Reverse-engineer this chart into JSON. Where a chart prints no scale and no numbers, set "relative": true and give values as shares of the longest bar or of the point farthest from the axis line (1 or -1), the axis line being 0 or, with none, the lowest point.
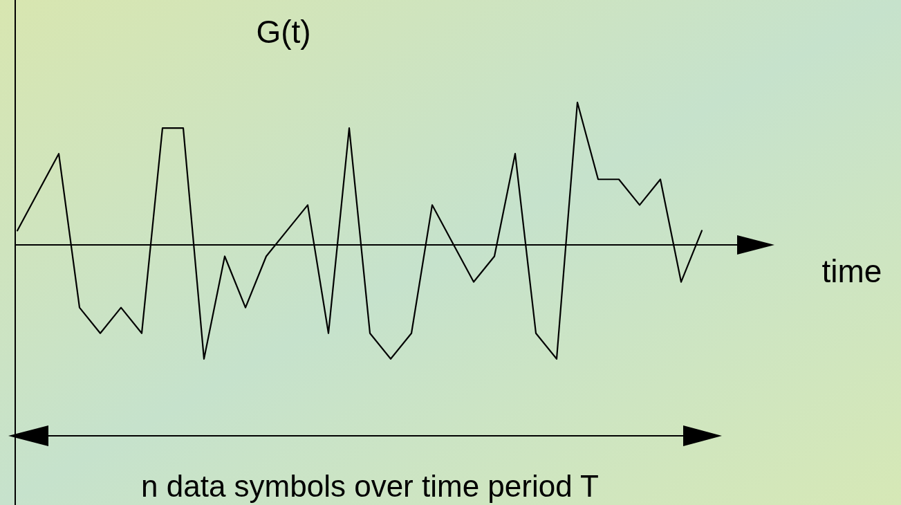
{
  "chart_data": {
    "type": "line",
    "relative": true,
    "ylabel": "G(t)",
    "xlabel": "time",
    "annotations": [
      "n data symbols over time period T"
    ],
    "categories": [
      null,
      null,
      null,
      null,
      null,
      null,
      null,
      null,
      null,
      null,
      null,
      null,
      null,
      null,
      null,
      null,
      null,
      null,
      null,
      null,
      null,
      null,
      null,
      null,
      null,
      null,
      null,
      null,
      null,
      null,
      null,
      null,
      null,
      null
    ],
    "series": [
      {
        "color": "#000000",
        "values": [
          0.1,
          0.37,
          0.64,
          -0.44,
          -0.62,
          -0.44,
          -0.62,
          0.82,
          0.82,
          -0.8,
          -0.08,
          -0.44,
          -0.08,
          0.1,
          0.28,
          -0.62,
          0.82,
          -0.62,
          -0.8,
          -0.62,
          0.28,
          0.01,
          -0.26,
          -0.08,
          0.64,
          -0.62,
          -0.8,
          1,
          0.46,
          0.46,
          0.28,
          0.46,
          -0.26,
          0.1
        ]
      }
    ],
    "marker": "none",
    "line_style": "solid"
  }
}
